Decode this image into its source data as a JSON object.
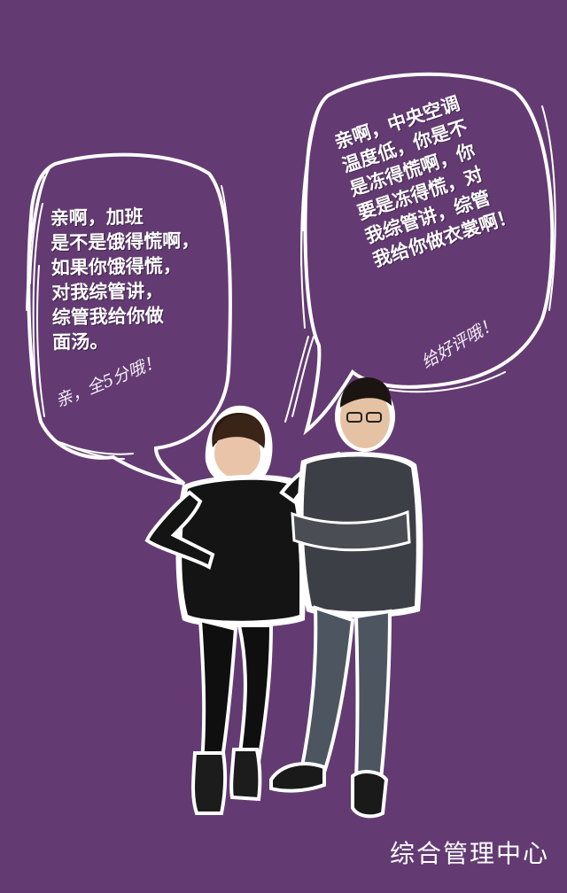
{
  "left_bubble": {
    "lines": [
      "亲啊，加班",
      "是不是饿得慌啊，",
      "如果你饿得慌，",
      "对我综管讲，",
      "综管我给你做",
      "面汤。"
    ],
    "sign": "亲，全5分哦！"
  },
  "right_bubble": {
    "lines": [
      "亲啊，中央空调",
      "温度低，你是不",
      "是冻得慌啊，你",
      "要是冻得慌，对",
      "我综管讲，综管",
      "我给你做衣裳啊！"
    ],
    "sign": "给好评哦！"
  },
  "footer": {
    "label": "综合管理中心"
  },
  "colors": {
    "background": "#633b72",
    "bubble_outline": "#ffffff",
    "text": "#ffffff"
  }
}
